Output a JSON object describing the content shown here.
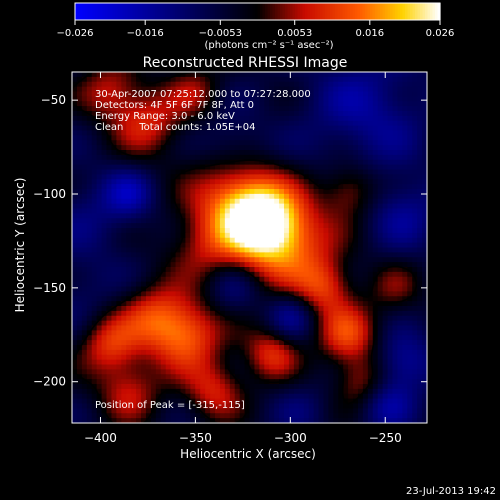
{
  "chart_data": {
    "type": "heatmap",
    "title": "Reconstructed RHESSI Image",
    "xlabel": "Heliocentric X (arcsec)",
    "ylabel": "Heliocentric Y (arcsec)",
    "xlim": [
      -415,
      -228
    ],
    "ylim": [
      -222,
      -35
    ],
    "xticks": [
      -400,
      -350,
      -300,
      -250
    ],
    "yticks": [
      -50,
      -100,
      -150,
      -200
    ],
    "colorbar": {
      "range": [
        -0.026,
        0.026
      ],
      "ticks": [
        "-0.026",
        "-0.016",
        "-0.0053",
        "0.0053",
        "0.016",
        "0.026"
      ],
      "unit": "(photons cm⁻² s⁻¹ asec⁻²)"
    },
    "annotations": [
      "30-Apr-2007 07:25:12.000 to 07:27:28.000",
      "Detectors: 4F 5F 6F 7F 8F, Att 0",
      "Energy Range: 3.0 - 6.0 keV",
      "Clean     Total counts: 1.05E+04",
      "Position of Peak = [-315,-115]"
    ],
    "peak": {
      "x": -315,
      "y": -115
    },
    "timestamp": "23-Jul-2013 19:42",
    "intensity_sources": [
      {
        "x": -315,
        "y": -115,
        "w": 1.0,
        "s": 14
      },
      {
        "x": -330,
        "y": -100,
        "w": 0.55,
        "s": 16
      },
      {
        "x": -300,
        "y": -128,
        "w": 0.55,
        "s": 18
      },
      {
        "x": -345,
        "y": -128,
        "w": 0.35,
        "s": 14
      },
      {
        "x": -355,
        "y": -175,
        "w": 0.65,
        "s": 13
      },
      {
        "x": -372,
        "y": -165,
        "w": 0.45,
        "s": 12
      },
      {
        "x": -395,
        "y": -180,
        "w": 0.5,
        "s": 11
      },
      {
        "x": -385,
        "y": -205,
        "w": 0.4,
        "s": 12
      },
      {
        "x": -340,
        "y": -205,
        "w": 0.45,
        "s": 11
      },
      {
        "x": -310,
        "y": -185,
        "w": 0.5,
        "s": 10
      },
      {
        "x": -270,
        "y": -175,
        "w": 0.55,
        "s": 11
      },
      {
        "x": -282,
        "y": -150,
        "w": 0.45,
        "s": 10
      },
      {
        "x": -262,
        "y": -200,
        "w": 0.4,
        "s": 10
      },
      {
        "x": -375,
        "y": -62,
        "w": 0.45,
        "s": 13
      },
      {
        "x": -395,
        "y": -45,
        "w": 0.4,
        "s": 11
      },
      {
        "x": -350,
        "y": -45,
        "w": 0.3,
        "s": 10
      },
      {
        "x": -268,
        "y": -98,
        "w": 0.4,
        "s": 10
      },
      {
        "x": -245,
        "y": -150,
        "w": 0.25,
        "s": 10
      },
      {
        "x": -405,
        "y": -110,
        "w": -0.2,
        "s": 16
      },
      {
        "x": -385,
        "y": -100,
        "w": -0.35,
        "s": 9
      },
      {
        "x": -330,
        "y": -75,
        "w": -0.25,
        "s": 12
      },
      {
        "x": -260,
        "y": -55,
        "w": -0.35,
        "s": 22
      },
      {
        "x": -240,
        "y": -110,
        "w": -0.3,
        "s": 14
      },
      {
        "x": -300,
        "y": -165,
        "w": -0.35,
        "s": 9
      },
      {
        "x": -330,
        "y": -150,
        "w": -0.25,
        "s": 10
      },
      {
        "x": -240,
        "y": -190,
        "w": -0.4,
        "s": 11
      },
      {
        "x": -250,
        "y": -212,
        "w": -0.35,
        "s": 10
      },
      {
        "x": -410,
        "y": -150,
        "w": -0.15,
        "s": 14
      },
      {
        "x": -295,
        "y": -215,
        "w": -0.15,
        "s": 10
      }
    ]
  }
}
